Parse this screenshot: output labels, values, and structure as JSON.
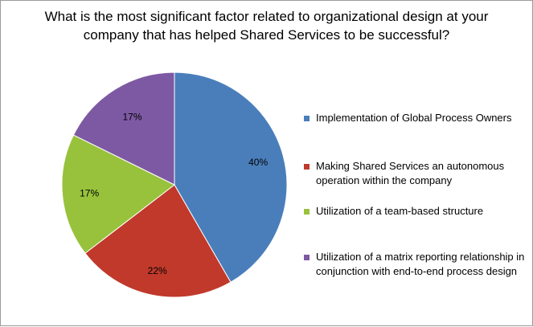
{
  "chart_data": {
    "type": "pie",
    "title": "What is the most significant factor related to organizational design at your company that has helped Shared Services to be successful?",
    "slices": [
      {
        "label": "Implementation of Global Process Owners",
        "value": 40,
        "display": "40%",
        "color": "#4a7ebb"
      },
      {
        "label": "Making Shared Services an autonomous operation within the company",
        "value": 22,
        "display": "22%",
        "color": "#c0392b"
      },
      {
        "label": "Utilization of a team-based structure",
        "value": 17,
        "display": "17%",
        "color": "#98c23c"
      },
      {
        "label": "Utilization of a matrix reporting relationship in conjunction with end-to-end process design",
        "value": 17,
        "display": "17%",
        "color": "#7e59a3"
      }
    ],
    "legend_position": "right"
  }
}
